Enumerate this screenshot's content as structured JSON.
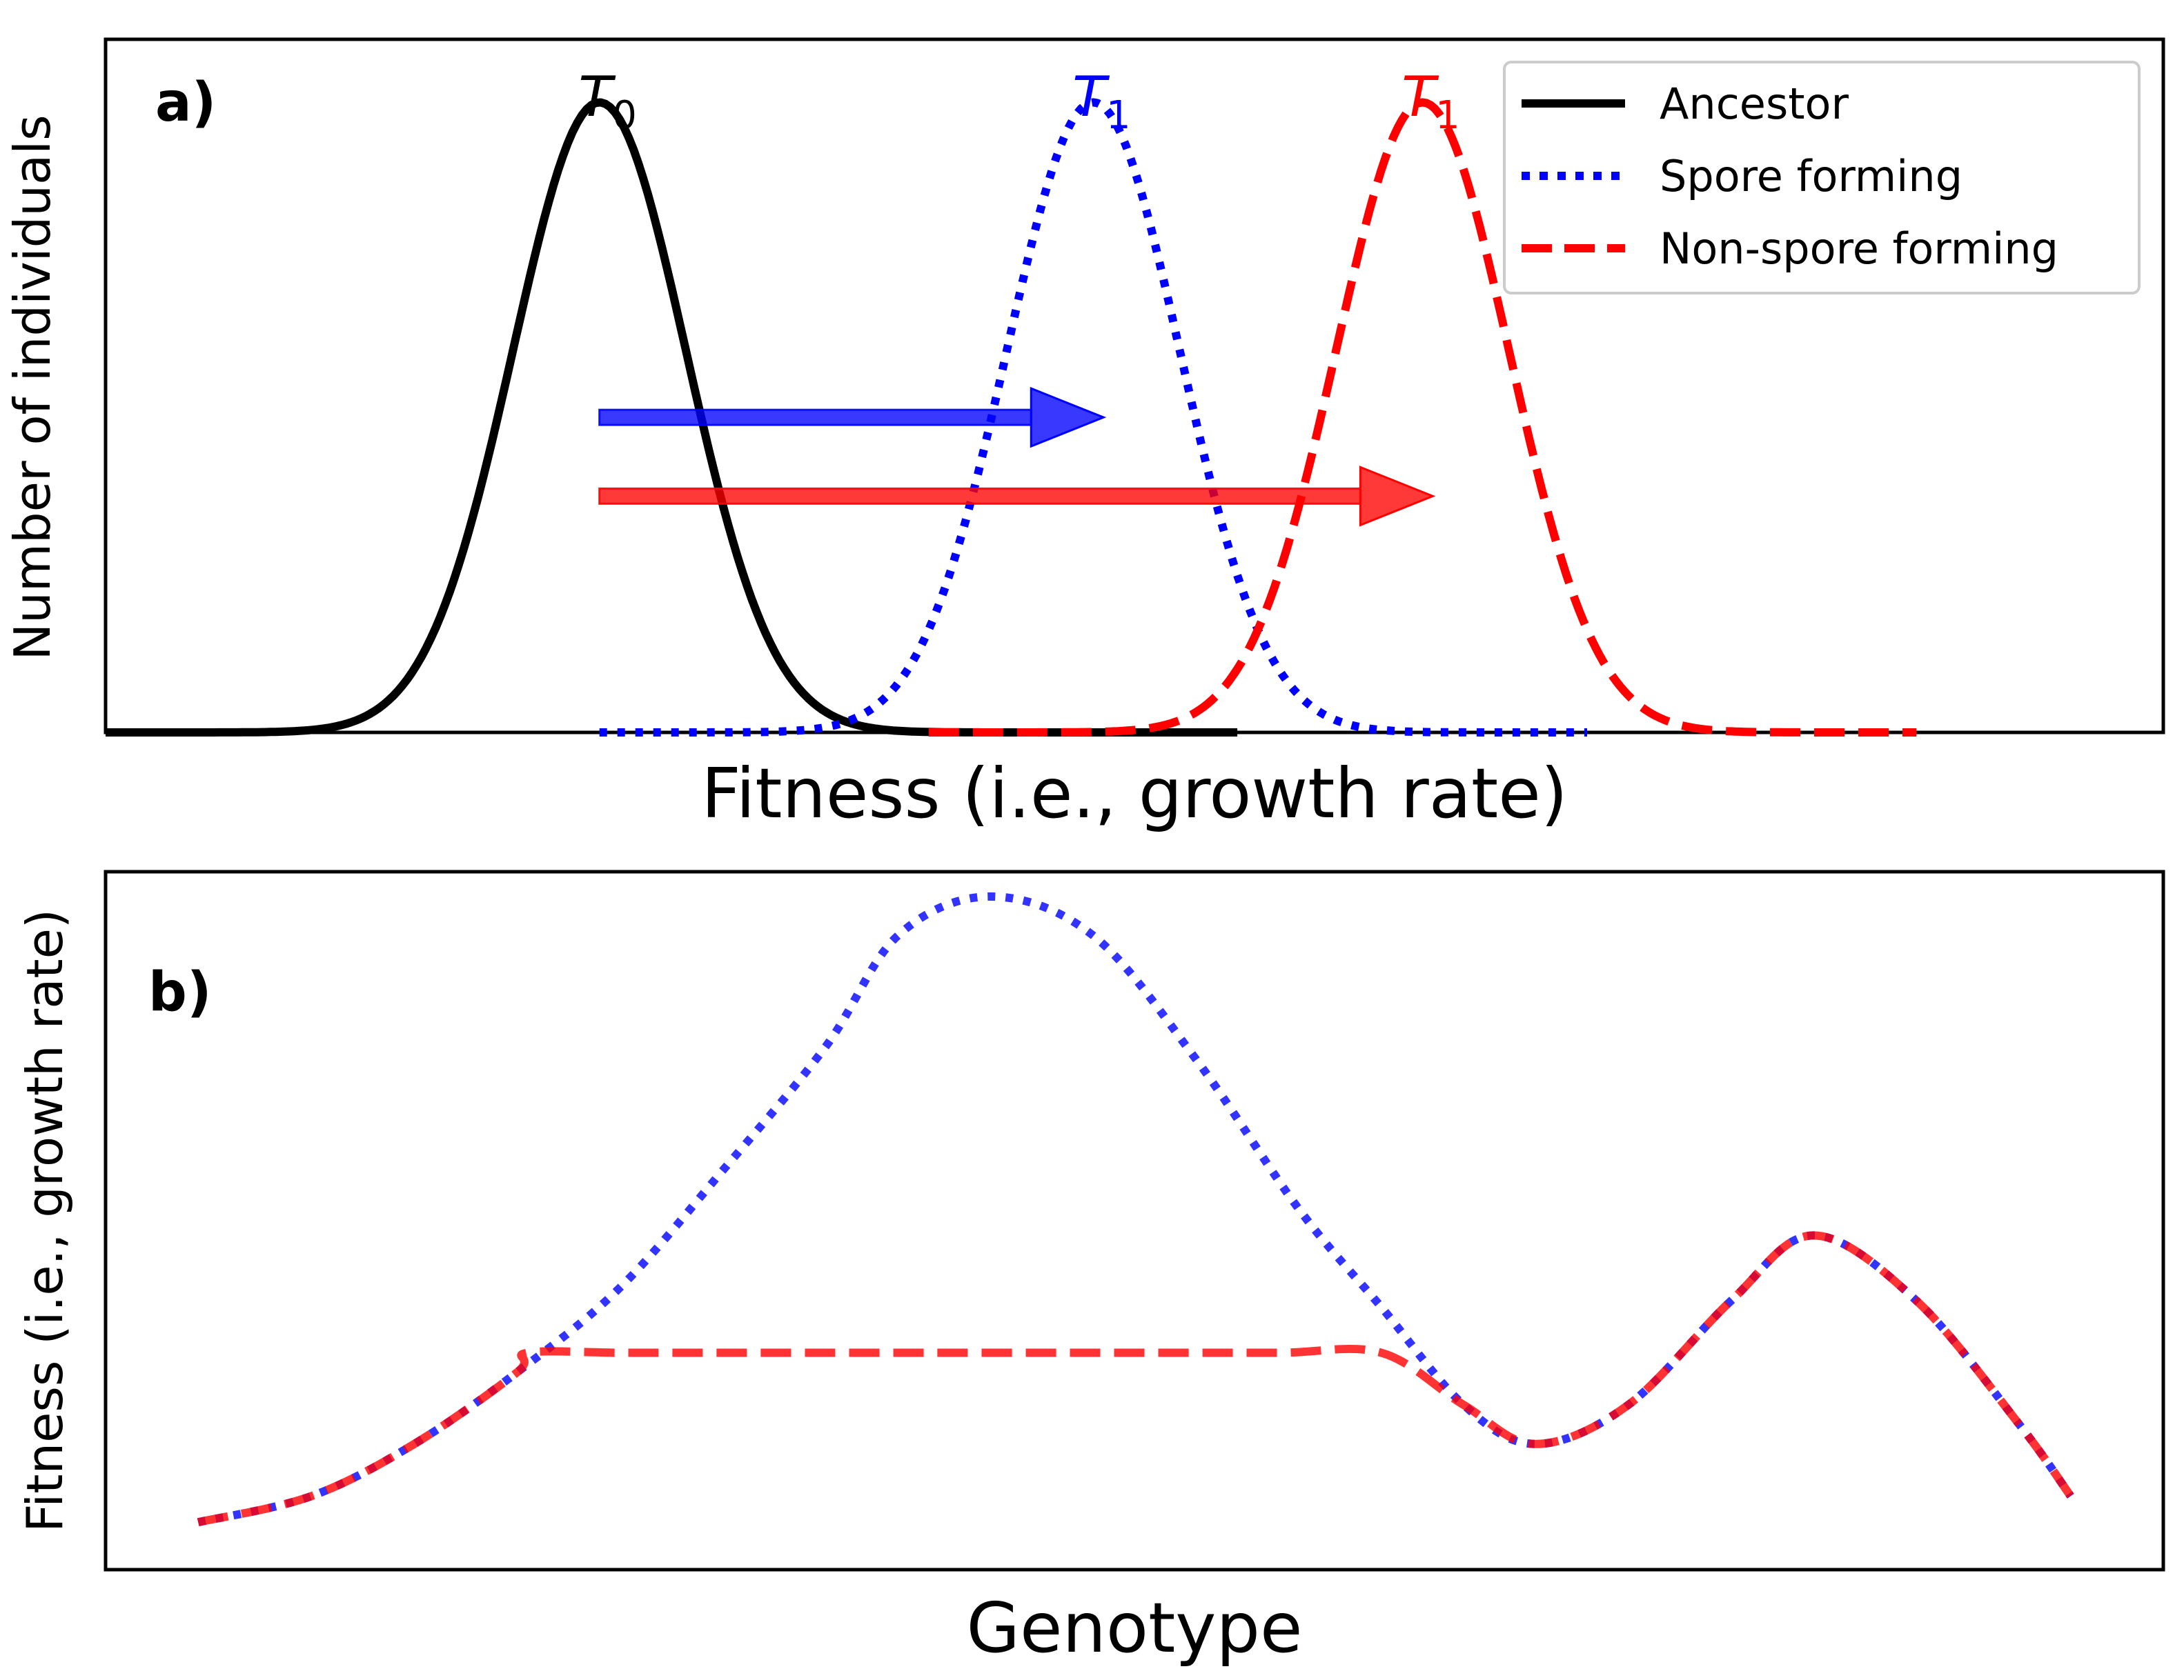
{
  "figure": {
    "panels": [
      {
        "id": "a",
        "label": "a)",
        "xlabel": "Fitness (i.e., growth rate)",
        "ylabel": "Number of individuals",
        "peak_labels": [
          {
            "base": "T",
            "sub": "0",
            "color": "#000000"
          },
          {
            "base": "T",
            "sub": "1",
            "color": "#0000ff"
          },
          {
            "base": "T",
            "sub": "1",
            "color": "#ff0000"
          }
        ],
        "legend": {
          "placement": "top-right",
          "entries": [
            {
              "label": "Ancestor",
              "style": "solid",
              "color": "#000000"
            },
            {
              "label": "Spore forming",
              "style": "dotted",
              "color": "#0000ff"
            },
            {
              "label": "Non-spore forming",
              "style": "dashed",
              "color": "#ff0000"
            }
          ]
        }
      },
      {
        "id": "b",
        "label": "b)",
        "xlabel": "Genotype",
        "ylabel": "Fitness (i.e., growth rate)"
      }
    ]
  },
  "chart_data": [
    {
      "type": "line",
      "panel": "a",
      "xlim": [
        0,
        10
      ],
      "ylim": [
        0,
        1.1
      ],
      "ticks_visible": false,
      "grid": false,
      "series": [
        {
          "name": "Ancestor",
          "style": "solid",
          "color": "#000000",
          "mean": 2.4,
          "sd": 0.42,
          "amplitude": 1.0,
          "x_range": [
            0,
            5.5
          ]
        },
        {
          "name": "Spore forming",
          "style": "dotted",
          "color": "#0000ff",
          "mean": 4.8,
          "sd": 0.42,
          "amplitude": 1.0,
          "x_range": [
            2.4,
            7.2
          ]
        },
        {
          "name": "Non-spore forming",
          "style": "dashed",
          "color": "#ff0000",
          "mean": 6.4,
          "sd": 0.42,
          "amplitude": 1.0,
          "x_range": [
            4.0,
            8.8
          ]
        }
      ],
      "arrows": [
        {
          "color": "#0000ff",
          "x_start": 2.4,
          "x_end": 4.85,
          "y": 0.5
        },
        {
          "color": "#ff0000",
          "x_start": 2.4,
          "x_end": 6.45,
          "y": 0.375
        }
      ]
    },
    {
      "type": "line",
      "panel": "b",
      "xlim": [
        0,
        10
      ],
      "ylim": [
        0,
        1.0
      ],
      "ticks_visible": false,
      "grid": false,
      "series": [
        {
          "style": "dotted",
          "color": "#0000ff",
          "points": [
            [
              0.45,
              0.04
            ],
            [
              1.0,
              0.08
            ],
            [
              1.5,
              0.16
            ],
            [
              2.0,
              0.27
            ],
            [
              2.5,
              0.4
            ],
            [
              3.0,
              0.58
            ],
            [
              3.5,
              0.77
            ],
            [
              3.85,
              0.94
            ],
            [
              4.3,
              1.0
            ],
            [
              4.8,
              0.94
            ],
            [
              5.3,
              0.75
            ],
            [
              5.8,
              0.52
            ],
            [
              6.2,
              0.37
            ],
            [
              6.6,
              0.22
            ],
            [
              6.95,
              0.16
            ],
            [
              7.4,
              0.22
            ],
            [
              7.9,
              0.38
            ],
            [
              8.3,
              0.48
            ],
            [
              8.8,
              0.38
            ],
            [
              9.3,
              0.19
            ],
            [
              9.55,
              0.08
            ]
          ]
        },
        {
          "style": "dashed",
          "color": "#ff0000",
          "points": [
            [
              0.45,
              0.04
            ],
            [
              1.0,
              0.08
            ],
            [
              1.5,
              0.16
            ],
            [
              2.0,
              0.27
            ],
            [
              2.05,
              0.3
            ],
            [
              2.5,
              0.3
            ],
            [
              3.0,
              0.3
            ],
            [
              4.0,
              0.3
            ],
            [
              5.0,
              0.3
            ],
            [
              5.7,
              0.3
            ],
            [
              6.2,
              0.3
            ],
            [
              6.6,
              0.22
            ],
            [
              6.95,
              0.16
            ],
            [
              7.4,
              0.22
            ],
            [
              7.9,
              0.38
            ],
            [
              8.3,
              0.48
            ],
            [
              8.8,
              0.38
            ],
            [
              9.3,
              0.19
            ],
            [
              9.55,
              0.08
            ]
          ]
        }
      ]
    }
  ]
}
